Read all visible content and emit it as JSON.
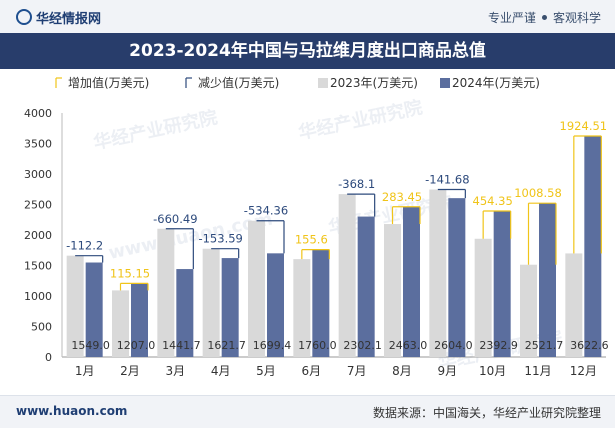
{
  "site": {
    "brand": "华经情报网",
    "tagline_a": "专业严谨",
    "tagline_b": "客观科学"
  },
  "footer": {
    "url": "www.huaon.com",
    "source": "数据来源：中国海关，华经产业研究院整理"
  },
  "colors": {
    "bar2023": "#d9d9d9",
    "bar2024": "#5b6e9e",
    "increase": "#f0c419",
    "decrease": "#2d4a7c"
  },
  "watermarks": [
    "华经产业研究院",
    "www.huaon.com"
  ],
  "chart_data": {
    "type": "bar",
    "title": "2023-2024年中国与马拉维月度出口商品总值",
    "categories": [
      "1月",
      "2月",
      "3月",
      "4月",
      "5月",
      "6月",
      "7月",
      "8月",
      "9月",
      "10月",
      "11月",
      "12月"
    ],
    "series": [
      {
        "name": "2023年(万美元)",
        "values": [
          1661.2,
          1091.85,
          2102.19,
          1775.29,
          2233.76,
          1604.4,
          2670.2,
          2179.55,
          2745.68,
          1938.55,
          1513.12,
          1698.09
        ]
      },
      {
        "name": "2024年(万美元)",
        "values": [
          1549.0,
          1207.0,
          1441.7,
          1621.7,
          1699.4,
          1760.0,
          2302.1,
          2463.0,
          2604.0,
          2392.9,
          2521.7,
          3622.6
        ]
      }
    ],
    "value_labels_2024": [
      "1549.0",
      "1207.0",
      "1441.7",
      "1621.7",
      "1699.4",
      "1760.0",
      "2302.1",
      "2463.0",
      "2604.0",
      "2392.9",
      "2521.7",
      "3622.6"
    ],
    "change_labels": [
      "-112.2",
      "115.15",
      "-660.49",
      "-153.59",
      "-534.36",
      "155.6",
      "-368.1",
      "283.45",
      "-141.68",
      "454.35",
      "1008.58",
      "1924.51"
    ],
    "legend": [
      "增加值(万美元)",
      "减少值(万美元)",
      "2023年(万美元)",
      "2024年(万美元)"
    ],
    "ylim": [
      0,
      4000
    ],
    "yticks": [
      "0",
      "500",
      "1000",
      "1500",
      "2000",
      "2500",
      "3000",
      "3500",
      "4000"
    ],
    "legend_position": "top",
    "grid": false
  }
}
